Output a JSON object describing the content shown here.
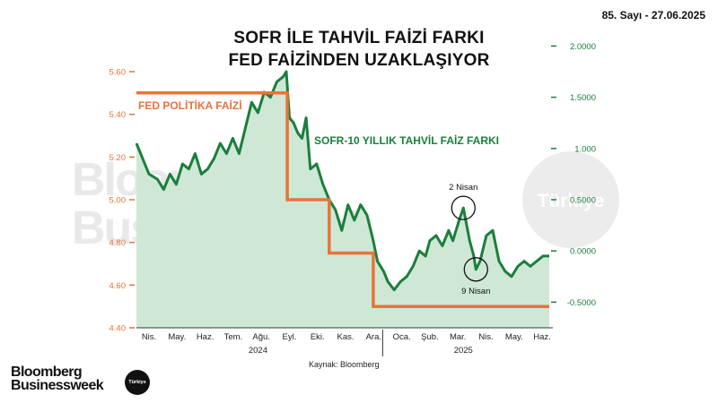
{
  "header": {
    "issue": "85. Sayı - 27.06.2025",
    "title_line1": "SOFR İLE TAHVİL FAİZİ FARKI",
    "title_line2": "FED FAİZİNDEN UZAKLAŞIYOR"
  },
  "colors": {
    "fed": "#e8733a",
    "spread": "#1a7f3c",
    "fill": "#cfe8d6",
    "axis_left": "#e8733a",
    "axis_right": "#1a7f3c"
  },
  "chart_data": {
    "type": "line",
    "series": [
      {
        "name": "FED POLİTİKA FAİZİ",
        "axis": "left",
        "points": [
          [
            0,
            5.5
          ],
          [
            7.2,
            5.5
          ],
          [
            7.2,
            5.0
          ],
          [
            9.2,
            5.0
          ],
          [
            9.2,
            4.75
          ],
          [
            11.3,
            4.75
          ],
          [
            11.3,
            4.5
          ],
          [
            19.7,
            4.5
          ]
        ]
      },
      {
        "name": "SOFR-10 YILLIK TAHVİL FAİZ FARKI",
        "axis": "right",
        "points": [
          [
            0,
            1.05
          ],
          [
            0.3,
            0.9
          ],
          [
            0.6,
            0.75
          ],
          [
            1.0,
            0.7
          ],
          [
            1.3,
            0.6
          ],
          [
            1.6,
            0.75
          ],
          [
            1.9,
            0.65
          ],
          [
            2.2,
            0.85
          ],
          [
            2.5,
            0.8
          ],
          [
            2.8,
            0.95
          ],
          [
            3.1,
            0.75
          ],
          [
            3.4,
            0.8
          ],
          [
            3.7,
            0.9
          ],
          [
            4.0,
            1.05
          ],
          [
            4.3,
            0.95
          ],
          [
            4.6,
            1.1
          ],
          [
            4.9,
            0.95
          ],
          [
            5.2,
            1.2
          ],
          [
            5.5,
            1.45
          ],
          [
            5.8,
            1.35
          ],
          [
            6.1,
            1.55
          ],
          [
            6.4,
            1.5
          ],
          [
            6.7,
            1.65
          ],
          [
            7.0,
            1.7
          ],
          [
            7.15,
            1.75
          ],
          [
            7.3,
            1.3
          ],
          [
            7.5,
            1.25
          ],
          [
            7.7,
            1.15
          ],
          [
            7.9,
            1.1
          ],
          [
            8.1,
            1.3
          ],
          [
            8.3,
            0.8
          ],
          [
            8.6,
            0.85
          ],
          [
            8.9,
            0.65
          ],
          [
            9.2,
            0.5
          ],
          [
            9.5,
            0.4
          ],
          [
            9.8,
            0.2
          ],
          [
            10.1,
            0.45
          ],
          [
            10.4,
            0.3
          ],
          [
            10.7,
            0.45
          ],
          [
            11.0,
            0.35
          ],
          [
            11.3,
            0.1
          ],
          [
            11.5,
            -0.1
          ],
          [
            11.8,
            -0.2
          ],
          [
            12.0,
            -0.3
          ],
          [
            12.3,
            -0.38
          ],
          [
            12.6,
            -0.3
          ],
          [
            12.9,
            -0.25
          ],
          [
            13.2,
            -0.15
          ],
          [
            13.5,
            0.0
          ],
          [
            13.8,
            -0.05
          ],
          [
            14.0,
            0.1
          ],
          [
            14.3,
            0.15
          ],
          [
            14.6,
            0.05
          ],
          [
            14.9,
            0.2
          ],
          [
            15.1,
            0.1
          ],
          [
            15.4,
            0.3
          ],
          [
            15.6,
            0.42
          ],
          [
            15.9,
            0.1
          ],
          [
            16.1,
            -0.05
          ],
          [
            16.2,
            -0.18
          ],
          [
            16.4,
            -0.1
          ],
          [
            16.7,
            0.15
          ],
          [
            17.0,
            0.2
          ],
          [
            17.3,
            -0.1
          ],
          [
            17.6,
            -0.2
          ],
          [
            17.9,
            -0.25
          ],
          [
            18.2,
            -0.15
          ],
          [
            18.5,
            -0.1
          ],
          [
            18.8,
            -0.15
          ],
          [
            19.1,
            -0.1
          ],
          [
            19.4,
            -0.05
          ],
          [
            19.7,
            -0.05
          ]
        ]
      }
    ],
    "left_axis": {
      "min": 4.4,
      "max": 5.6,
      "ticks": [
        "5.60",
        "5.40",
        "5.20",
        "5.00",
        "4.80",
        "4.60",
        "4.40"
      ],
      "values": [
        5.6,
        5.4,
        5.2,
        5.0,
        4.8,
        4.6,
        4.4
      ]
    },
    "right_axis": {
      "min": -0.75,
      "max": 1.75,
      "ticks": [
        "2.0000",
        "1.5000",
        "1.000",
        "0.5000",
        "0.0000",
        "-0.5000"
      ],
      "values": [
        2.0,
        1.5,
        1.0,
        0.5,
        0.0,
        -0.5
      ]
    },
    "x_months": [
      "Nis.",
      "May.",
      "Haz.",
      "Tem.",
      "Ağu.",
      "Eyl.",
      "Eki.",
      "Kas.",
      "Ara.",
      "Oca.",
      "Şub.",
      "Mar.",
      "Nis.",
      "May.",
      "Haz."
    ],
    "x_years": [
      "2024",
      "2025"
    ],
    "annotations": [
      {
        "label": "2 Nisan",
        "x": 15.6,
        "y": 0.42
      },
      {
        "label": "9 Nisan",
        "x": 16.2,
        "y": -0.18
      }
    ],
    "source": "Kaynak: Bloomberg"
  },
  "watermark": {
    "line1": "Bloomberg",
    "line2": "Businessweek",
    "badge": "Türkiye"
  },
  "footer": {
    "logo_line1": "Bloomberg",
    "logo_line2": "Businessweek",
    "badge": "Türkiye"
  }
}
